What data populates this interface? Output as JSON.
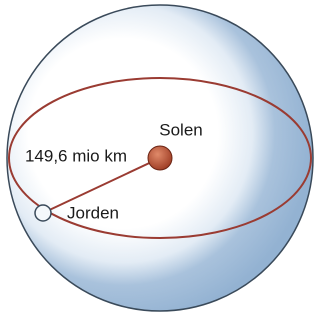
{
  "labels": {
    "sun": "Solen",
    "distance": "149,6 mio km",
    "earth": "Jorden"
  }
}
